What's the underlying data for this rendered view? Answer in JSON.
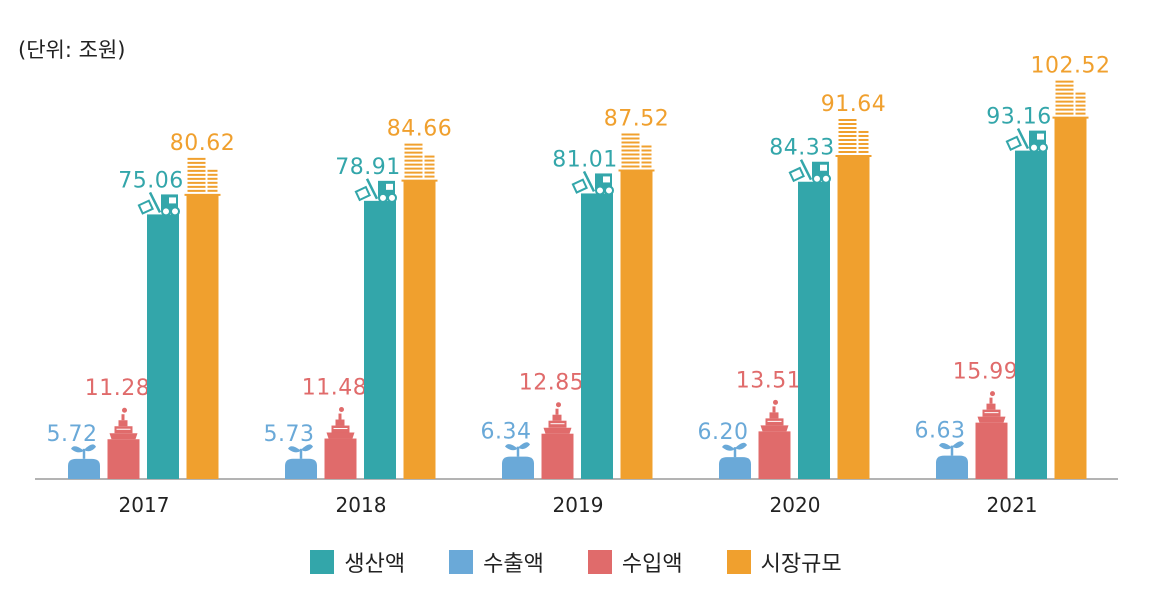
{
  "unit_label": "(단위: 조원)",
  "chart_data": {
    "type": "bar",
    "categories": [
      "2017",
      "2018",
      "2019",
      "2020",
      "2021"
    ],
    "series": [
      {
        "name": "수출액",
        "color": "#6aa9d8",
        "icon": "plant-icon",
        "values": [
          5.72,
          5.73,
          6.34,
          6.2,
          6.63
        ],
        "labels": [
          "5.72",
          "5.73",
          "6.34",
          "6.20",
          "6.63"
        ]
      },
      {
        "name": "수입액",
        "color": "#e06b6b",
        "icon": "ship-icon",
        "values": [
          11.28,
          11.48,
          12.85,
          13.51,
          15.99
        ],
        "labels": [
          "11.28",
          "11.48",
          "12.85",
          "13.51",
          "15.99"
        ]
      },
      {
        "name": "생산액",
        "color": "#33a6aa",
        "icon": "truck-icon",
        "values": [
          75.06,
          78.91,
          81.01,
          84.33,
          93.16
        ],
        "labels": [
          "75.06",
          "78.91",
          "81.01",
          "84.33",
          "93.16"
        ]
      },
      {
        "name": "시장규모",
        "color": "#f0a02e",
        "icon": "building-icon",
        "values": [
          80.62,
          84.66,
          87.52,
          91.64,
          102.52
        ],
        "labels": [
          "80.62",
          "84.66",
          "87.52",
          "91.64",
          "102.52"
        ]
      }
    ],
    "legend_order": [
      "생산액",
      "수출액",
      "수입액",
      "시장규모"
    ],
    "grid": false,
    "legend_position": "bottom-center"
  }
}
